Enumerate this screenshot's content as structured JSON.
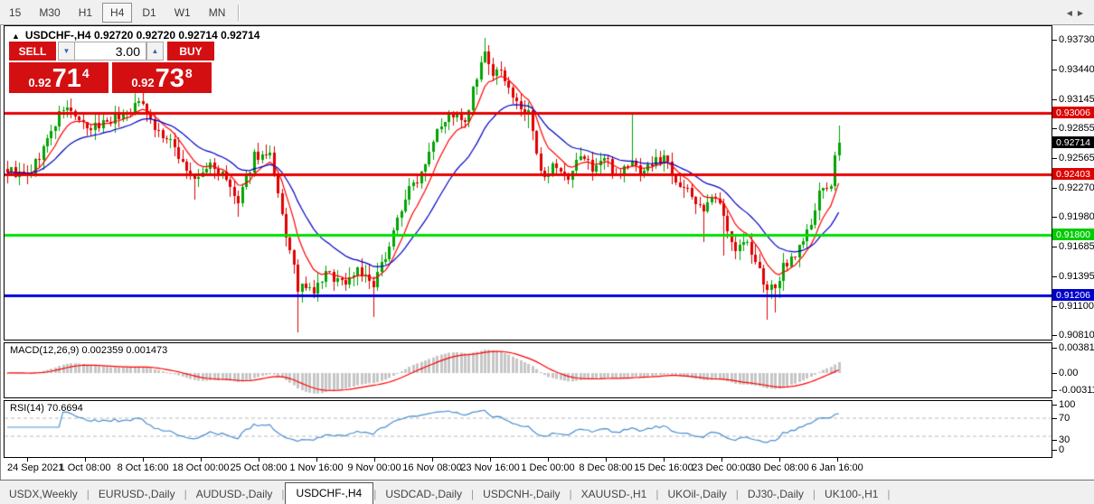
{
  "toolbar": {
    "timeframes": [
      "15",
      "M30",
      "H1",
      "H4",
      "D1",
      "W1",
      "MN"
    ],
    "active": "H4"
  },
  "header": {
    "collapse_icon": "▲",
    "title": "USDCHF-,H4",
    "quotes": "0.92720 0.92720 0.92714 0.92714"
  },
  "trade_panel": {
    "sell_label": "SELL",
    "buy_label": "BUY",
    "volume": "3.00",
    "spin_down": "▼",
    "spin_up": "▲",
    "sell_price": {
      "prefix": "0.92",
      "big": "71",
      "sup": "4"
    },
    "buy_price": {
      "prefix": "0.92",
      "big": "73",
      "sup": "8"
    }
  },
  "chart_data": {
    "type": "candlestick",
    "symbol": "USDCHF",
    "timeframe": "H4",
    "price_axis_ticks": [
      "0.93730",
      "0.93440",
      "0.93145",
      "0.92855",
      "0.92565",
      "0.92270",
      "0.91980",
      "0.91685",
      "0.91395",
      "0.91100",
      "0.90810"
    ],
    "price_top": 0.93866,
    "price_bottom": 0.90768,
    "levels": [
      {
        "price": 0.93006,
        "label": "0.93006",
        "line_color": "#e60000",
        "badge_color": "#dd0000"
      },
      {
        "price": 0.92403,
        "label": "0.92403",
        "line_color": "#e60000",
        "badge_color": "#dd0000"
      },
      {
        "price": 0.918,
        "label": "0.91800",
        "line_color": "#00e000",
        "badge_color": "#00cc00"
      },
      {
        "price": 0.91206,
        "label": "0.91206",
        "line_color": "#0000d8",
        "badge_color": "#0000cc"
      }
    ],
    "current_price": {
      "value": 0.92714,
      "label": "0.92714",
      "badge_color": "#000000"
    },
    "time_labels": [
      "24 Sep 2021",
      "1 Oct 08:00",
      "8 Oct 16:00",
      "18 Oct 00:00",
      "25 Oct 08:00",
      "1 Nov 16:00",
      "9 Nov 00:00",
      "16 Nov 08:00",
      "23 Nov 16:00",
      "1 Dec 00:00",
      "8 Dec 08:00",
      "15 Dec 16:00",
      "23 Dec 00:00",
      "30 Dec 08:00",
      "6 Jan 16:00"
    ],
    "num_candles": 210,
    "close_anchors": [
      [
        0,
        0.9245
      ],
      [
        5,
        0.9236
      ],
      [
        9,
        0.9266
      ],
      [
        14,
        0.9306
      ],
      [
        17,
        0.9299
      ],
      [
        20,
        0.9282
      ],
      [
        25,
        0.9294
      ],
      [
        29,
        0.9299
      ],
      [
        34,
        0.9313
      ],
      [
        37,
        0.9286
      ],
      [
        42,
        0.9266
      ],
      [
        47,
        0.9232
      ],
      [
        51,
        0.925
      ],
      [
        55,
        0.9234
      ],
      [
        58,
        0.921
      ],
      [
        62,
        0.926
      ],
      [
        66,
        0.9256
      ],
      [
        69,
        0.9198
      ],
      [
        73,
        0.9128
      ],
      [
        77,
        0.9124
      ],
      [
        80,
        0.9142
      ],
      [
        85,
        0.9133
      ],
      [
        88,
        0.9148
      ],
      [
        92,
        0.9128
      ],
      [
        96,
        0.9172
      ],
      [
        100,
        0.9218
      ],
      [
        104,
        0.9243
      ],
      [
        108,
        0.9288
      ],
      [
        112,
        0.93
      ],
      [
        115,
        0.9288
      ],
      [
        117,
        0.9322
      ],
      [
        120,
        0.9358
      ],
      [
        122,
        0.934
      ],
      [
        125,
        0.9337
      ],
      [
        128,
        0.9308
      ],
      [
        131,
        0.93
      ],
      [
        134,
        0.924
      ],
      [
        137,
        0.9246
      ],
      [
        141,
        0.9231
      ],
      [
        144,
        0.926
      ],
      [
        147,
        0.9247
      ],
      [
        150,
        0.9256
      ],
      [
        153,
        0.924
      ],
      [
        157,
        0.9252
      ],
      [
        159,
        0.9244
      ],
      [
        162,
        0.925
      ],
      [
        165,
        0.9258
      ],
      [
        168,
        0.9236
      ],
      [
        171,
        0.9222
      ],
      [
        175,
        0.9206
      ],
      [
        178,
        0.9216
      ],
      [
        180,
        0.9198
      ],
      [
        183,
        0.9168
      ],
      [
        186,
        0.9172
      ],
      [
        188,
        0.9152
      ],
      [
        191,
        0.9128
      ],
      [
        193,
        0.9124
      ],
      [
        195,
        0.915
      ],
      [
        198,
        0.9162
      ],
      [
        200,
        0.9176
      ],
      [
        202,
        0.919
      ],
      [
        204,
        0.9219
      ],
      [
        207,
        0.9232
      ],
      [
        208,
        0.9254
      ],
      [
        209,
        0.92714
      ]
    ],
    "wick_extends": [
      [
        34,
        0.0018
      ],
      [
        47,
        -0.002
      ],
      [
        58,
        -0.0014
      ],
      [
        73,
        -0.004
      ],
      [
        92,
        -0.003
      ],
      [
        120,
        0.0013
      ],
      [
        131,
        -0.0016
      ],
      [
        157,
        0.0045
      ],
      [
        175,
        -0.003
      ],
      [
        180,
        -0.004
      ],
      [
        191,
        -0.003
      ],
      [
        193,
        -0.0024
      ],
      [
        209,
        0.0017
      ]
    ],
    "colors": {
      "up": "#00a400",
      "down": "#e00000",
      "ma_fast": "#ff0000",
      "ma_slow": "#0000c8"
    },
    "ma_periods": {
      "fast": 8,
      "slow": 21
    }
  },
  "macd": {
    "label": "MACD(12,26,9) 0.002359 0.001473",
    "axis": [
      "0.003811",
      "0.00",
      "-0.003115"
    ],
    "histogram_color": "#c6c6c6",
    "signal_color": "#ff0000",
    "params": [
      12,
      26,
      9
    ]
  },
  "rsi": {
    "label": "RSI(14) 70.6694",
    "axis": [
      "100",
      "70",
      "30",
      "0"
    ],
    "levels": [
      70,
      30
    ],
    "line_color": "#4a8fd2",
    "period": 14
  },
  "tabs": {
    "items": [
      "USDX,Weekly",
      "EURUSD-,Daily",
      "AUDUSD-,Daily",
      "USDCHF-,H4",
      "USDCAD-,Daily",
      "USDCNH-,Daily",
      "XAUUSD-,H1",
      "UKOil-,Daily",
      "DJ30-,Daily",
      "UK100-,H1"
    ],
    "active": "USDCHF-,H4",
    "nav_prev": "◀",
    "nav_next": "▶"
  }
}
